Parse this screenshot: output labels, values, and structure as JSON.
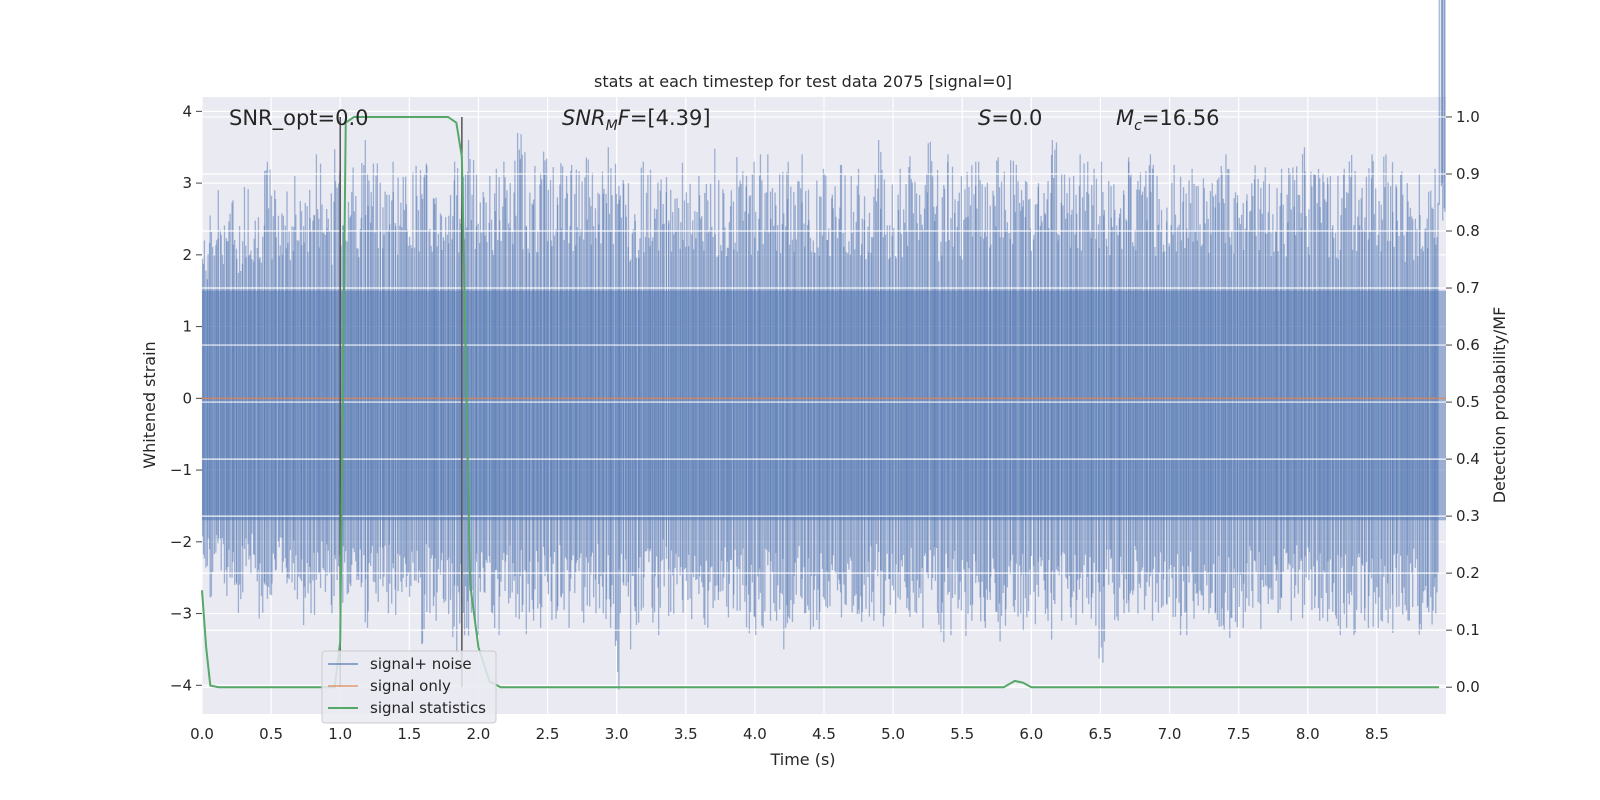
{
  "chart_data": {
    "type": "line",
    "title": "stats at each timestep for test data 2075 [signal=0]",
    "xlabel": "Time (s)",
    "ylabel_left": "Whitened strain",
    "ylabel_right": "Detection probability/MF",
    "xlim": [
      0.0,
      9.0
    ],
    "ylim_left": [
      -4.4,
      4.2
    ],
    "ylim_right": [
      -0.047,
      1.035
    ],
    "xticks": [
      "0.0",
      "0.5",
      "1.0",
      "1.5",
      "2.0",
      "2.5",
      "3.0",
      "3.5",
      "4.0",
      "4.5",
      "5.0",
      "5.5",
      "6.0",
      "6.5",
      "7.0",
      "7.5",
      "8.0",
      "8.5"
    ],
    "yticks_left": [
      "4",
      "3",
      "2",
      "1",
      "0",
      "−1",
      "−2",
      "−3",
      "−4"
    ],
    "yticks_right": [
      "1.0",
      "0.9",
      "0.8",
      "0.7",
      "0.6",
      "0.5",
      "0.4",
      "0.3",
      "0.2",
      "0.1",
      "0.0"
    ],
    "grid": true,
    "background": "#eaeaf2",
    "annotations": {
      "snr_opt": "SNR_opt=0.0",
      "snr_mf_main": "SNR",
      "snr_mf_sub": "M",
      "snr_mf_rest": "F=[4.39]",
      "s_main": "S",
      "s_rest": "=0.0",
      "mc_main": "M",
      "mc_sub": "c",
      "mc_rest": "=16.56"
    },
    "vlines_x": [
      1.0,
      1.88
    ],
    "series": [
      {
        "name": "signal+ noise",
        "color": "#4c72b0",
        "opacity": 0.5,
        "axis": "left",
        "envelope_upper": [
          2.2,
          2.6,
          2.9,
          2.7,
          2.8,
          2.4,
          3.1,
          2.7,
          2.9,
          3.3,
          2.9,
          2.8,
          3.0,
          3.1,
          2.8,
          3.0,
          3.4,
          3.3,
          2.9,
          3.6,
          2.9,
          3.4,
          3.2,
          3.6,
          3.3,
          3.5,
          3.2,
          3.3,
          3.3,
          3.1,
          3.3,
          3.2,
          3.3,
          3.0,
          3.1,
          3.3,
          3.3,
          3.4,
          3.6,
          3.4,
          3.2,
          3.1,
          3.2,
          3.3,
          3.0,
          3.7,
          3.5,
          3.3,
          3.3,
          3.5,
          3.3,
          3.4,
          3.1,
          3.4,
          3.2,
          3.4,
          3.3,
          3.2,
          3.5,
          3.3,
          3.2,
          3.0,
          3.0,
          3.3,
          3.3,
          3.4,
          3.1,
          3.2,
          3.1,
          3.3,
          3.1,
          3.1,
          3.0,
          3.5,
          3.1,
          3.1,
          3.4,
          3.2,
          3.1,
          3.3,
          3.4,
          3.4,
          3.2,
          3.3,
          3.3,
          3.1,
          3.4,
          3.1,
          3.1,
          3.2,
          3.2,
          3.5,
          3.3,
          3.1,
          3.2,
          3.1,
          3.2,
          3.6,
          3.1,
          3.1,
          3.2,
          3.4,
          3.3,
          3.1,
          3.6,
          3.3,
          3.0,
          3.4,
          3.2,
          3.1,
          3.3,
          3.3,
          3.0,
          3.1,
          3.5,
          3.2,
          3.4,
          3.3,
          3.1,
          3.1,
          3.0,
          3.3,
          3.6,
          3.2,
          3.2,
          3.1,
          3.4,
          3.3,
          3.2,
          3.3,
          3.1,
          3.2,
          3.5,
          3.5,
          3.2,
          3.3,
          3.4,
          3.1,
          3.0,
          3.3,
          3.3,
          3.1,
          3.2,
          3.0,
          3.1,
          3.0,
          3.4,
          3.4,
          3.1,
          3.1,
          3.3,
          3.4,
          3.3,
          3.1,
          3.2,
          3.2,
          3.4,
          3.3,
          3.5,
          3.2,
          3.4,
          3.2,
          3.1,
          3.1,
          3.2,
          3.4,
          3.1,
          3.5,
          3.4,
          3.2,
          3.4,
          3.3,
          3.2,
          3.0,
          3.1,
          3.2,
          3.3,
          3.2,
          3.0
        ],
        "envelope_lower": [
          -2.5,
          -2.8,
          -2.4,
          -2.9,
          -2.6,
          -3.0,
          -2.7,
          -2.6,
          -3.2,
          -2.9,
          -2.6,
          -2.7,
          -3.0,
          -2.8,
          -3.2,
          -3.0,
          -3.1,
          -2.8,
          -3.0,
          -3.4,
          -2.9,
          -2.8,
          -3.1,
          -3.2,
          -2.6,
          -3.1,
          -3.0,
          -3.1,
          -2.7,
          -3.4,
          -2.9,
          -3.6,
          -3.0,
          -3.1,
          -2.9,
          -3.2,
          -3.6,
          -3.3,
          -3.4,
          -3.3,
          -3.2,
          -3.0,
          -3.3,
          -3.1,
          -2.9,
          -3.2,
          -3.4,
          -3.1,
          -3.2,
          -2.9,
          -3.3,
          -3.0,
          -3.2,
          -3.0,
          -3.2,
          -2.9,
          -3.0,
          -3.0,
          -3.2,
          -4.1,
          -3.2,
          -3.5,
          -3.3,
          -3.0,
          -3.2,
          -3.3,
          -2.8,
          -3.1,
          -2.9,
          -3.0,
          -3.1,
          -3.3,
          -3.2,
          -3.0,
          -3.1,
          -3.1,
          -3.0,
          -3.0,
          -3.3,
          -3.3,
          -3.2,
          -3.1,
          -3.1,
          -3.5,
          -3.2,
          -3.1,
          -3.0,
          -3.3,
          -3.3,
          -2.9,
          -3.1,
          -3.0,
          -3.2,
          -3.2,
          -3.2,
          -3.2,
          -3.1,
          -3.0,
          -3.2,
          -3.0,
          -3.1,
          -3.2,
          -3.0,
          -3.2,
          -3.1,
          -3.0,
          -3.4,
          -3.3,
          -3.1,
          -3.6,
          -3.1,
          -3.1,
          -3.2,
          -3.2,
          -3.5,
          -3.2,
          -3.0,
          -3.1,
          -3.3,
          -3.2,
          -3.3,
          -3.1,
          -3.4,
          -3.1,
          -3.0,
          -3.2,
          -3.0,
          -3.2,
          -3.3,
          -3.7,
          -3.2,
          -3.1,
          -3.0,
          -3.2,
          -3.0,
          -3.1,
          -3.1,
          -3.2,
          -3.2,
          -3.1,
          -3.3,
          -3.3,
          -3.1,
          -3.0,
          -3.1,
          -3.0,
          -3.2,
          -3.5,
          -3.6,
          -3.2,
          -3.0,
          -3.2,
          -3.3,
          -3.3,
          -3.1,
          -3.0,
          -3.1,
          -3.0,
          -3.2,
          -3.1,
          -3.1,
          -3.3,
          -3.1,
          -3.3,
          -3.2,
          -3.3,
          -3.0,
          -3.3,
          -3.2,
          -3.4,
          -3.2,
          -3.3,
          -3.2,
          -3.1,
          -3.0,
          -3.3,
          -3.2,
          -3.1
        ]
      },
      {
        "name": "signal only",
        "color": "#dd8452",
        "axis": "left",
        "x": [
          0.0,
          9.0
        ],
        "y": [
          0.0,
          0.0
        ]
      },
      {
        "name": "signal statistics",
        "color": "#55a868",
        "axis": "right",
        "x": [
          0.0,
          0.03,
          0.06,
          0.12,
          0.18,
          0.9,
          0.96,
          1.0,
          1.04,
          1.1,
          1.78,
          1.84,
          1.88,
          1.94,
          2.0,
          2.08,
          2.16,
          5.8,
          5.88,
          5.94,
          6.0,
          8.95
        ],
        "y": [
          0.17,
          0.07,
          0.003,
          0.0,
          0.0,
          0.0,
          0.0,
          0.08,
          0.99,
          1.0,
          1.0,
          0.99,
          0.93,
          0.18,
          0.07,
          0.01,
          0.0,
          0.0,
          0.011,
          0.008,
          0.0,
          0.0
        ]
      }
    ],
    "legend_position": "lower-left"
  }
}
